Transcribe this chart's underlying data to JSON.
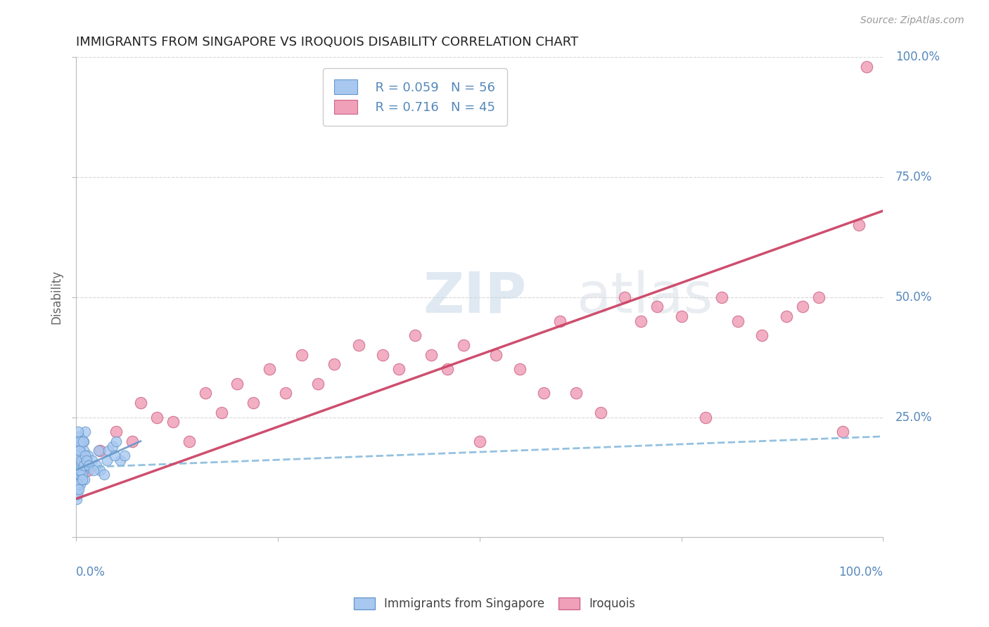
{
  "title": "IMMIGRANTS FROM SINGAPORE VS IROQUOIS DISABILITY CORRELATION CHART",
  "source_text": "Source: ZipAtlas.com",
  "ylabel": "Disability",
  "legend_r1": "R = 0.059",
  "legend_n1": "N = 56",
  "legend_r2": "R = 0.716",
  "legend_n2": "N = 45",
  "watermark_zip": "ZIP",
  "watermark_atlas": "atlas",
  "color_blue_fill": "#A8C8F0",
  "color_blue_edge": "#6699CC",
  "color_blue_line": "#88BBDD",
  "color_pink_fill": "#F0A0B8",
  "color_pink_edge": "#CC6688",
  "color_pink_line": "#CC4466",
  "color_axis_text": "#5588BB",
  "color_title": "#222222",
  "color_source": "#999999",
  "color_ylabel": "#666666",
  "color_grid": "#CCCCCC",
  "color_watermark": "#DDDDEE",
  "sing_x": [
    0.3,
    0.5,
    0.8,
    1.0,
    1.2,
    0.2,
    0.4,
    0.6,
    0.9,
    1.1,
    0.15,
    0.35,
    0.55,
    0.75,
    0.95,
    0.25,
    0.45,
    0.65,
    0.85,
    1.05,
    0.1,
    0.3,
    0.5,
    0.7,
    0.9,
    0.2,
    0.4,
    0.6,
    0.8,
    1.0,
    1.5,
    2.0,
    2.5,
    3.0,
    3.5,
    4.0,
    4.5,
    5.0,
    5.5,
    6.0,
    0.15,
    0.25,
    0.35,
    0.45,
    0.55,
    0.65,
    0.75,
    0.85,
    0.95,
    1.1,
    1.3,
    1.6,
    2.2,
    2.8,
    3.8,
    4.8
  ],
  "sing_y": [
    14,
    18,
    16,
    20,
    15,
    12,
    19,
    13,
    17,
    22,
    10,
    21,
    11,
    16,
    14,
    18,
    13,
    20,
    15,
    12,
    8,
    17,
    19,
    14,
    16,
    11,
    20,
    15,
    13,
    18,
    17,
    16,
    15,
    14,
    13,
    18,
    19,
    20,
    16,
    17,
    9,
    22,
    10,
    18,
    14,
    16,
    12,
    20,
    15,
    17,
    16,
    15,
    14,
    18,
    16,
    17
  ],
  "iroq_x": [
    1.5,
    3,
    5,
    7,
    8,
    10,
    12,
    14,
    16,
    18,
    20,
    22,
    24,
    26,
    28,
    30,
    32,
    35,
    38,
    40,
    42,
    44,
    46,
    48,
    50,
    52,
    55,
    58,
    60,
    62,
    65,
    68,
    70,
    72,
    75,
    78,
    80,
    82,
    85,
    88,
    90,
    92,
    95,
    97,
    98
  ],
  "iroq_y": [
    14,
    18,
    22,
    20,
    28,
    25,
    24,
    20,
    30,
    26,
    32,
    28,
    35,
    30,
    38,
    32,
    36,
    40,
    38,
    35,
    42,
    38,
    35,
    40,
    20,
    38,
    35,
    30,
    45,
    30,
    26,
    50,
    45,
    48,
    46,
    25,
    50,
    45,
    42,
    46,
    48,
    50,
    22,
    65,
    98
  ],
  "xlim": [
    0,
    100
  ],
  "ylim": [
    0,
    100
  ],
  "sing_trend_x": [
    0,
    100
  ],
  "sing_trend_y": [
    14.5,
    21.0
  ],
  "iroq_trend_x": [
    0,
    100
  ],
  "iroq_trend_y": [
    8,
    68
  ]
}
